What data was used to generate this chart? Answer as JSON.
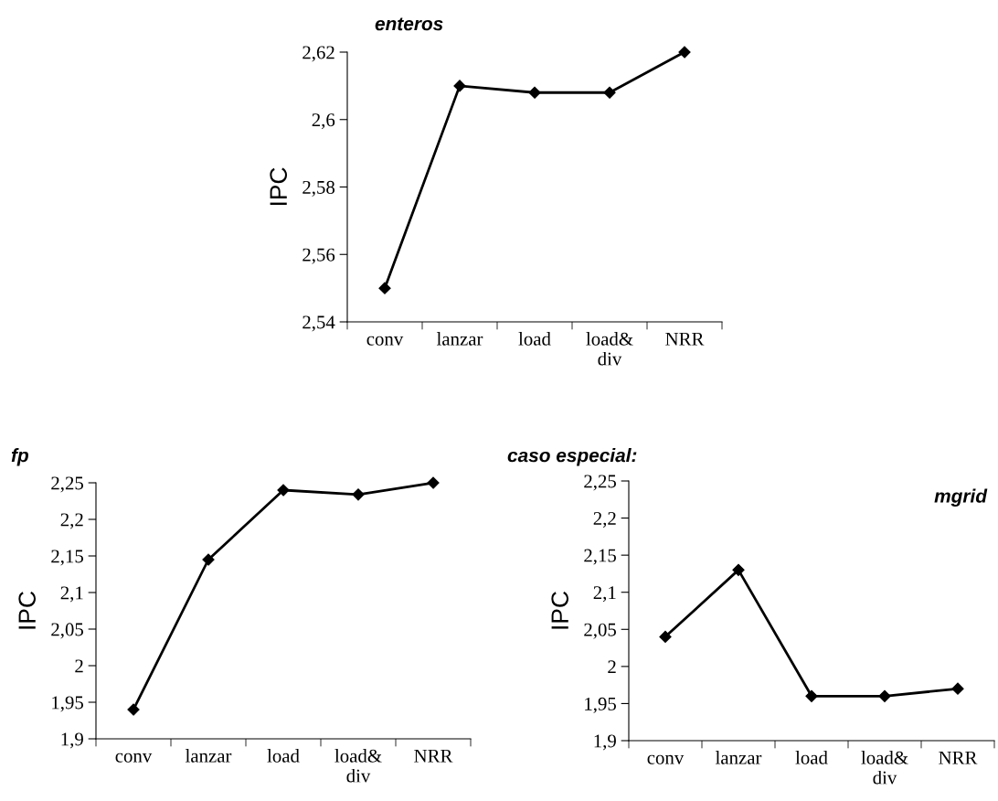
{
  "chart_data": [
    {
      "type": "line",
      "title": "enteros",
      "ylabel": "IPC",
      "categories": [
        "conv",
        "lanzar",
        "load",
        "load&\ndiv",
        "NRR"
      ],
      "series": [
        {
          "color": "#000000",
          "values": [
            2.55,
            2.61,
            2.608,
            2.608,
            2.62
          ]
        }
      ],
      "ylim": [
        2.54,
        2.62
      ],
      "yticks": [
        {
          "value": 2.54,
          "label": "2,54"
        },
        {
          "value": 2.56,
          "label": "2,56"
        },
        {
          "value": 2.58,
          "label": "2,58"
        },
        {
          "value": 2.6,
          "label": "2,6"
        },
        {
          "value": 2.62,
          "label": "2,62"
        }
      ],
      "marker": "diamond",
      "line_style": "solid"
    },
    {
      "type": "line",
      "title": "fp",
      "ylabel": "IPC",
      "categories": [
        "conv",
        "lanzar",
        "load",
        "load&\ndiv",
        "NRR"
      ],
      "series": [
        {
          "color": "#000000",
          "values": [
            1.94,
            2.145,
            2.24,
            2.234,
            2.25
          ]
        }
      ],
      "ylim": [
        1.9,
        2.25
      ],
      "yticks": [
        {
          "value": 1.9,
          "label": "1,9"
        },
        {
          "value": 1.95,
          "label": "1,95"
        },
        2,
        {
          "value": 2.05,
          "label": "2,05"
        },
        {
          "value": 2.1,
          "label": "2,1"
        },
        {
          "value": 2.15,
          "label": "2,15"
        },
        {
          "value": 2.2,
          "label": "2,2"
        },
        {
          "value": 2.25,
          "label": "2,25"
        }
      ],
      "marker": "diamond",
      "line_style": "solid"
    },
    {
      "type": "line",
      "title": "caso especial:",
      "ylabel": "IPC",
      "annotations": [
        "mgrid"
      ],
      "categories": [
        "conv",
        "lanzar",
        "load",
        "load&\ndiv",
        "NRR"
      ],
      "series": [
        {
          "color": "#000000",
          "values": [
            2.04,
            2.13,
            1.96,
            1.96,
            1.97
          ]
        }
      ],
      "ylim": [
        1.9,
        2.25
      ],
      "yticks": [
        {
          "value": 1.9,
          "label": "1,9"
        },
        {
          "value": 1.95,
          "label": "1,95"
        },
        2,
        {
          "value": 2.05,
          "label": "2,05"
        },
        {
          "value": 2.1,
          "label": "2,1"
        },
        {
          "value": 2.15,
          "label": "2,15"
        },
        {
          "value": 2.2,
          "label": "2,2"
        },
        {
          "value": 2.25,
          "label": "2,25"
        }
      ],
      "marker": "diamond",
      "line_style": "solid"
    }
  ]
}
